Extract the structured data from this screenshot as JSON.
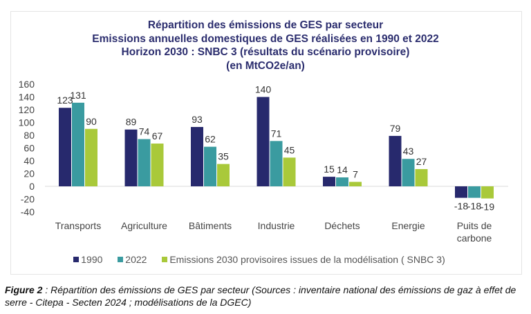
{
  "chart_data": {
    "type": "bar",
    "title": [
      "Répartition des émissions de GES par secteur",
      "Emissions annuelles domestiques de GES réalisées en 1990 et 2022",
      "Horizon 2030 : SNBC 3 (résultats du scénario provisoire)",
      "(en MtCO2e/an)"
    ],
    "categories": [
      [
        "Transports"
      ],
      [
        "Agriculture"
      ],
      [
        "Bâtiments"
      ],
      [
        "Industrie"
      ],
      [
        "Déchets"
      ],
      [
        "Energie"
      ],
      [
        "Puits de",
        "carbone"
      ]
    ],
    "series": [
      {
        "name": "1990",
        "color": "#27296d",
        "values": [
          123,
          89,
          93,
          140,
          15,
          79,
          -18
        ]
      },
      {
        "name": "2022",
        "color": "#3a9ba0",
        "values": [
          131,
          74,
          62,
          71,
          14,
          43,
          -18
        ]
      },
      {
        "name": "Emissions 2030 provisoires issues de la modélisation ( SNBC 3)",
        "color": "#a9c93a",
        "values": [
          90,
          67,
          35,
          45,
          7,
          27,
          -19
        ]
      }
    ],
    "ylim": [
      -40,
      160
    ],
    "yticks": [
      160,
      140,
      120,
      100,
      80,
      60,
      40,
      20,
      0,
      -20,
      -40
    ],
    "grid": false,
    "legend": "bottom",
    "xlabel": "",
    "ylabel": ""
  },
  "caption": {
    "label": "Figure 2",
    "text": " : Répartition des émissions de GES par secteur (Sources : inventaire national des émissions de gaz à effet de serre - Citepa - Secten 2024 ; modélisations de la DGEC)"
  }
}
